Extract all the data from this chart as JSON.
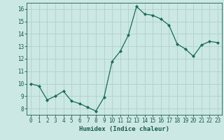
{
  "x": [
    0,
    1,
    2,
    3,
    4,
    5,
    6,
    7,
    8,
    9,
    10,
    11,
    12,
    13,
    14,
    15,
    16,
    17,
    18,
    19,
    20,
    21,
    22,
    23
  ],
  "y": [
    10.0,
    9.8,
    8.7,
    9.0,
    9.4,
    8.6,
    8.4,
    8.1,
    7.8,
    8.9,
    11.8,
    12.6,
    13.9,
    16.2,
    15.6,
    15.5,
    15.2,
    14.7,
    13.2,
    12.8,
    12.2,
    13.1,
    13.4,
    13.3
  ],
  "line_color": "#1a6b5a",
  "marker": "D",
  "marker_size": 2.0,
  "bg_color": "#cce8e4",
  "grid_color": "#b0d0cc",
  "xlabel": "Humidex (Indice chaleur)",
  "xlim": [
    -0.5,
    23.5
  ],
  "ylim": [
    7.5,
    16.5
  ],
  "yticks": [
    8,
    9,
    10,
    11,
    12,
    13,
    14,
    15,
    16
  ],
  "xticks": [
    0,
    1,
    2,
    3,
    4,
    5,
    6,
    7,
    8,
    9,
    10,
    11,
    12,
    13,
    14,
    15,
    16,
    17,
    18,
    19,
    20,
    21,
    22,
    23
  ],
  "tick_color": "#1a5a4a",
  "label_fontsize": 6.5,
  "tick_fontsize": 5.5
}
